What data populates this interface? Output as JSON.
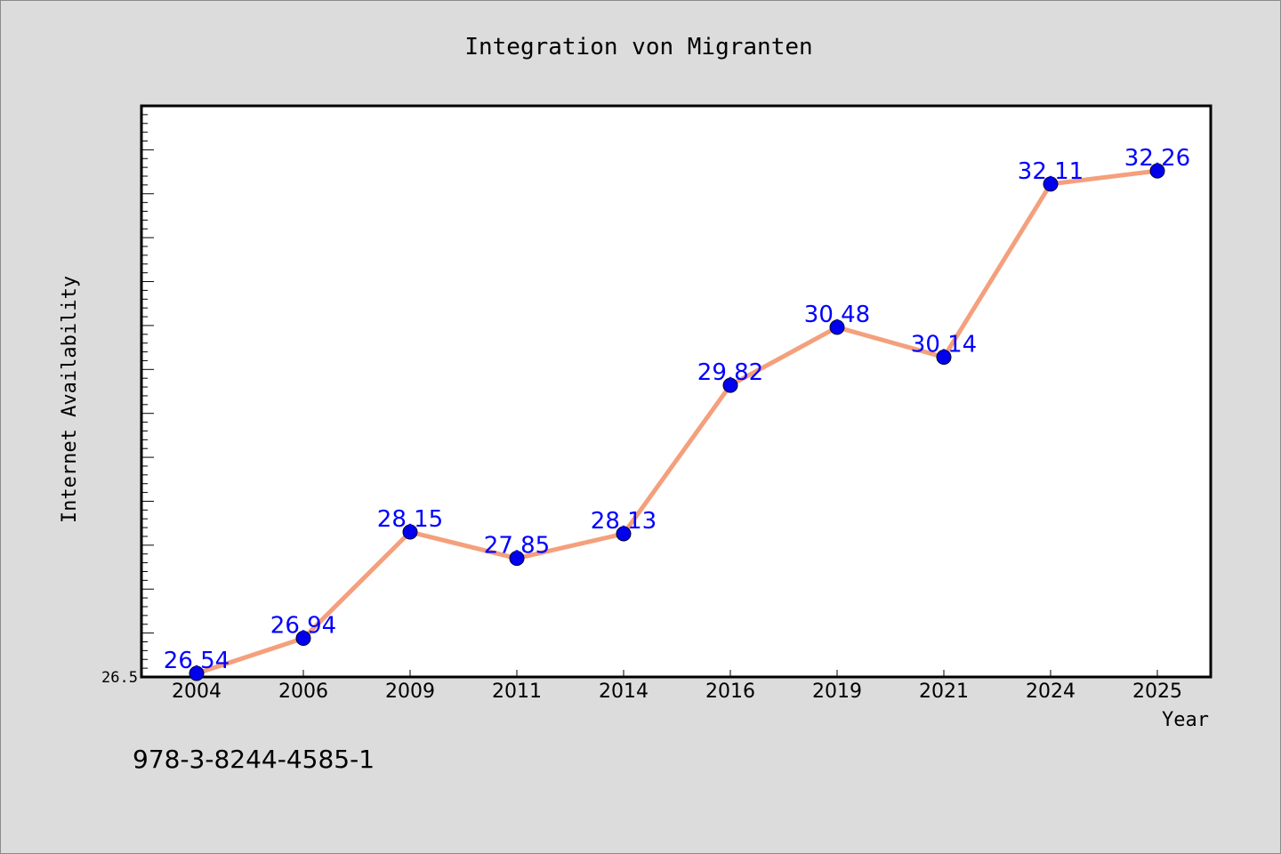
{
  "chart_data": {
    "type": "line",
    "title": "Integration von Migranten",
    "xlabel": "Year",
    "ylabel": "Internet Availability",
    "categories": [
      "2004",
      "2006",
      "2009",
      "2011",
      "2014",
      "2016",
      "2019",
      "2021",
      "2024",
      "2025"
    ],
    "series": [
      {
        "values": [
          26.54,
          26.94,
          28.15,
          27.85,
          28.13,
          29.82,
          30.48,
          30.14,
          32.11,
          32.26
        ],
        "data_labels": [
          "26.54",
          "26.94",
          "28.15",
          "27.85",
          "28.13",
          "29.82",
          "30.48",
          "30.14",
          "32.11",
          "32.26"
        ]
      }
    ],
    "ylim": [
      26.5,
      33
    ],
    "y_tick_labels": [
      "26.5"
    ],
    "grid": false,
    "legend": "none",
    "colors": {
      "line": "#f4a07c",
      "marker": "#0000ee",
      "data_label": "#0000ff",
      "plot_background": "#ffffff",
      "page_background": "#dcdcdc"
    }
  },
  "footer": {
    "code": "978-3-8244-4585-1"
  }
}
